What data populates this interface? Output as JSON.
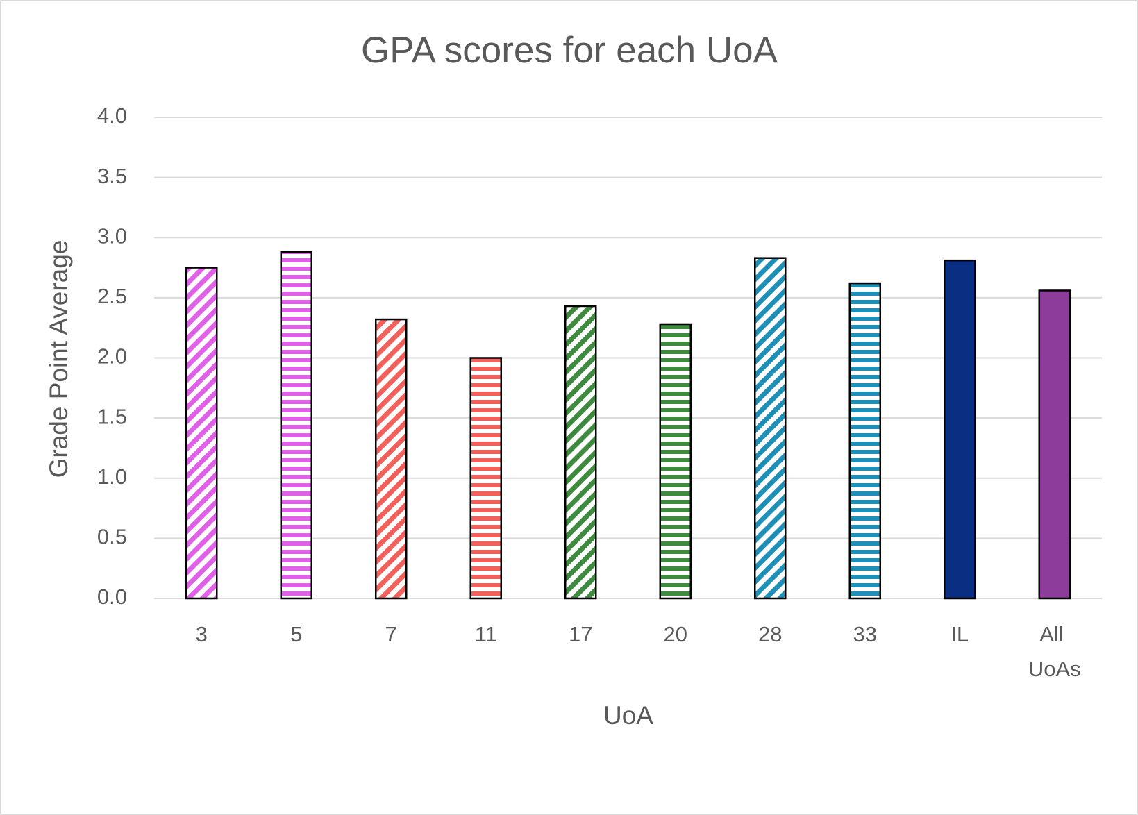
{
  "chart_data": {
    "type": "bar",
    "title": "GPA scores for each UoA",
    "x_label": "UoA",
    "y_label": "Grade Point Average",
    "categories": [
      "3",
      "5",
      "7",
      "11",
      "17",
      "20",
      "28",
      "33",
      "IL",
      "All UoAs"
    ],
    "values": [
      2.75,
      2.88,
      2.32,
      2.0,
      2.43,
      2.28,
      2.83,
      2.62,
      2.81,
      2.56
    ],
    "colors": [
      "#e060e8",
      "#e060e8",
      "#f2605c",
      "#f2605c",
      "#3e8a3e",
      "#3e8a3e",
      "#1e90b8",
      "#1e90b8",
      "#0a2f82",
      "#8e3c9c"
    ],
    "patterns": [
      "diagonal",
      "horizontal",
      "diagonal",
      "horizontal",
      "diagonal",
      "horizontal",
      "diagonal",
      "horizontal",
      "solid",
      "solid"
    ],
    "ylim": [
      0,
      4
    ],
    "yticks": [
      {
        "value": 0,
        "label": "0.0"
      },
      0.5,
      {
        "value": 1,
        "label": "1.0"
      },
      1.5,
      {
        "value": 2,
        "label": "2.0"
      },
      2.5,
      {
        "value": 3,
        "label": "3.0"
      },
      3.5,
      {
        "value": 4,
        "label": "4.0"
      }
    ],
    "grid": true
  }
}
